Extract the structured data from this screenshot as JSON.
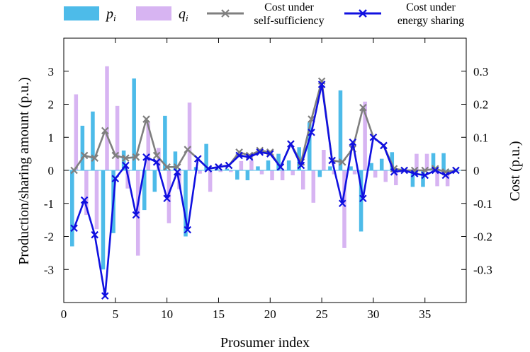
{
  "chart_data": {
    "type": "bar",
    "x": [
      1,
      2,
      3,
      4,
      5,
      6,
      7,
      8,
      9,
      10,
      11,
      12,
      13,
      14,
      15,
      16,
      17,
      18,
      19,
      20,
      21,
      22,
      23,
      24,
      25,
      26,
      27,
      28,
      29,
      30,
      31,
      32,
      33,
      34,
      35,
      36,
      37,
      38
    ],
    "series": [
      {
        "name": "p",
        "name_sub": "i",
        "type": "bar",
        "color": "#4dbbe9",
        "values": [
          -2.3,
          1.35,
          1.78,
          -3.0,
          -1.9,
          0.6,
          2.78,
          -1.2,
          -0.65,
          1.65,
          0.57,
          -2.0,
          0.1,
          0.8,
          0.05,
          0.05,
          -0.28,
          -0.3,
          0.12,
          0.3,
          0.5,
          0.3,
          0.7,
          1.45,
          -0.2,
          0.12,
          2.42,
          0.12,
          -1.85,
          0.22,
          0.35,
          0.55,
          0.05,
          -0.5,
          -0.5,
          0.52,
          0.52,
          0.0
        ]
      },
      {
        "name": "q",
        "name_sub": "i",
        "type": "bar",
        "color": "#d7b4f2",
        "values": [
          2.3,
          -1.35,
          -1.78,
          3.15,
          1.95,
          -0.55,
          -2.58,
          1.45,
          0.68,
          -1.6,
          -0.57,
          2.05,
          -0.1,
          -0.65,
          -0.05,
          -0.05,
          0.28,
          0.3,
          -0.12,
          -0.3,
          -0.3,
          -0.15,
          -0.58,
          -0.98,
          0.62,
          -0.12,
          -2.35,
          -0.12,
          2.08,
          -0.22,
          -0.35,
          -0.45,
          -0.05,
          0.5,
          0.5,
          -0.48,
          -0.48,
          0.0
        ]
      },
      {
        "name": "Cost under self-sufficiency",
        "type": "line",
        "axis": "right",
        "color": "#7f7f7f",
        "values": [
          0.0,
          0.045,
          0.037,
          0.12,
          0.045,
          0.037,
          0.04,
          0.155,
          0.045,
          0.01,
          0.01,
          0.063,
          0.035,
          0.005,
          0.01,
          0.015,
          0.055,
          0.045,
          0.06,
          0.055,
          0.01,
          0.08,
          0.025,
          0.155,
          0.27,
          0.03,
          0.025,
          0.065,
          0.19,
          0.1,
          0.075,
          0.005,
          0.0,
          0.0,
          0.0,
          0.005,
          -0.005,
          0.0
        ]
      },
      {
        "name": "Cost under energy sharing",
        "type": "line",
        "axis": "right",
        "color": "#1010e0",
        "values": [
          -0.175,
          -0.09,
          -0.195,
          -0.38,
          -0.025,
          0.015,
          -0.135,
          0.04,
          0.025,
          -0.085,
          -0.005,
          -0.18,
          0.035,
          0.005,
          0.01,
          0.015,
          0.045,
          0.04,
          0.055,
          0.05,
          0.01,
          0.08,
          0.015,
          0.115,
          0.26,
          0.03,
          -0.1,
          0.085,
          -0.085,
          0.1,
          0.075,
          -0.005,
          0.0,
          -0.01,
          -0.015,
          0.0,
          -0.015,
          0.0
        ]
      }
    ],
    "xlabel": "Prosumer index",
    "ylabel_left": "Production/sharing amount  (p.u.)",
    "ylabel_right": "Cost  (p.u.)",
    "xlim": [
      0,
      39
    ],
    "ylim_left": [
      -4,
      4
    ],
    "ylim_right": [
      -0.4,
      0.4
    ],
    "xticks": [
      0,
      5,
      10,
      15,
      20,
      25,
      30,
      35
    ],
    "yticks_left": [
      3,
      2,
      1,
      0,
      -1,
      -2,
      -3
    ],
    "yticks_left_labels": [
      "3",
      "2",
      "1",
      "0",
      "-1",
      "-2",
      "-3"
    ],
    "yticks_right": [
      0.3,
      0.2,
      0.1,
      0,
      -0.1,
      -0.2,
      -0.3
    ],
    "yticks_right_labels": [
      "0.3",
      "0.2",
      "0.1",
      "0",
      "-0.1",
      "-0.2",
      "-0.3"
    ],
    "grid": false,
    "legend_position": "top-outside"
  },
  "legend": {
    "p_label": "p",
    "p_sub": "i",
    "q_label": "q",
    "q_sub": "i",
    "self_line1": "Cost under",
    "self_line2": "self-sufficiency",
    "share_line1": "Cost under",
    "share_line2": "energy sharing"
  }
}
